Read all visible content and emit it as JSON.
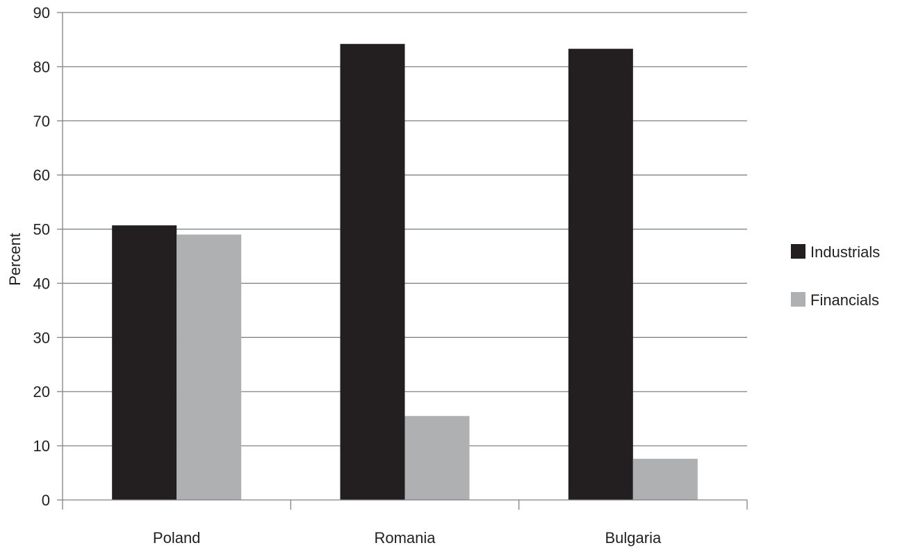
{
  "chart_data": {
    "type": "bar",
    "title": "",
    "xlabel": "",
    "ylabel": "Percent",
    "ylim": [
      0,
      90
    ],
    "yticks": [
      0,
      10,
      20,
      30,
      40,
      50,
      60,
      70,
      80,
      90
    ],
    "grid": true,
    "legend_position": "right",
    "categories": [
      "Poland",
      "Romania",
      "Bulgaria"
    ],
    "series": [
      {
        "name": "Industrials",
        "color": "#231f20",
        "values": [
          50.7,
          84.2,
          83.3
        ]
      },
      {
        "name": "Financials",
        "color": "#aeb0b2",
        "values": [
          49.0,
          15.5,
          7.6
        ]
      }
    ]
  }
}
